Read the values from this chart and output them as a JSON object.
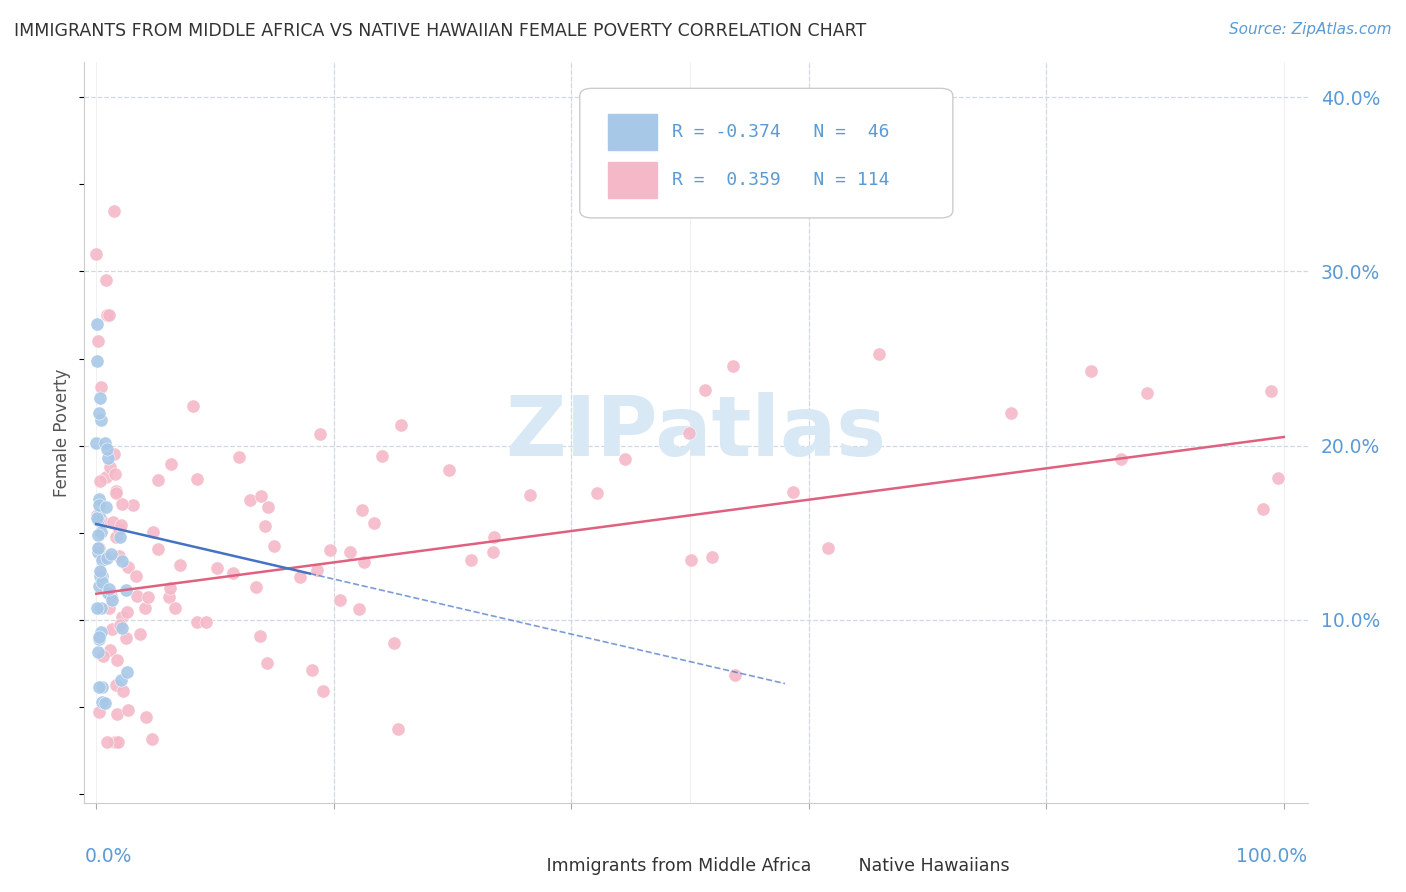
{
  "title": "IMMIGRANTS FROM MIDDLE AFRICA VS NATIVE HAWAIIAN FEMALE POVERTY CORRELATION CHART",
  "source": "Source: ZipAtlas.com",
  "ylabel": "Female Poverty",
  "R_blue": -0.374,
  "N_blue": 46,
  "R_pink": 0.359,
  "N_pink": 114,
  "color_blue_fill": "#a8c8e8",
  "color_blue_line": "#4472c4",
  "color_pink_fill": "#f4b8c8",
  "color_pink_line": "#e06080",
  "color_axis_text": "#5b9bd5",
  "color_grid": "#d0d8e8",
  "color_title": "#333333",
  "background": "#ffffff",
  "watermark_color": "#d8e8f4",
  "xlim": [
    0.0,
    1.0
  ],
  "ylim": [
    0.0,
    0.42
  ],
  "yticks": [
    0.1,
    0.2,
    0.3,
    0.4
  ],
  "ytick_labels": [
    "10.0%",
    "20.0%",
    "30.0%",
    "40.0%"
  ],
  "blue_trend_x0": 0.0,
  "blue_trend_y0": 0.155,
  "blue_trend_x1": 0.38,
  "blue_trend_y1": 0.095,
  "pink_trend_x0": 0.0,
  "pink_trend_y0": 0.115,
  "pink_trend_x1": 1.0,
  "pink_trend_y1": 0.205
}
